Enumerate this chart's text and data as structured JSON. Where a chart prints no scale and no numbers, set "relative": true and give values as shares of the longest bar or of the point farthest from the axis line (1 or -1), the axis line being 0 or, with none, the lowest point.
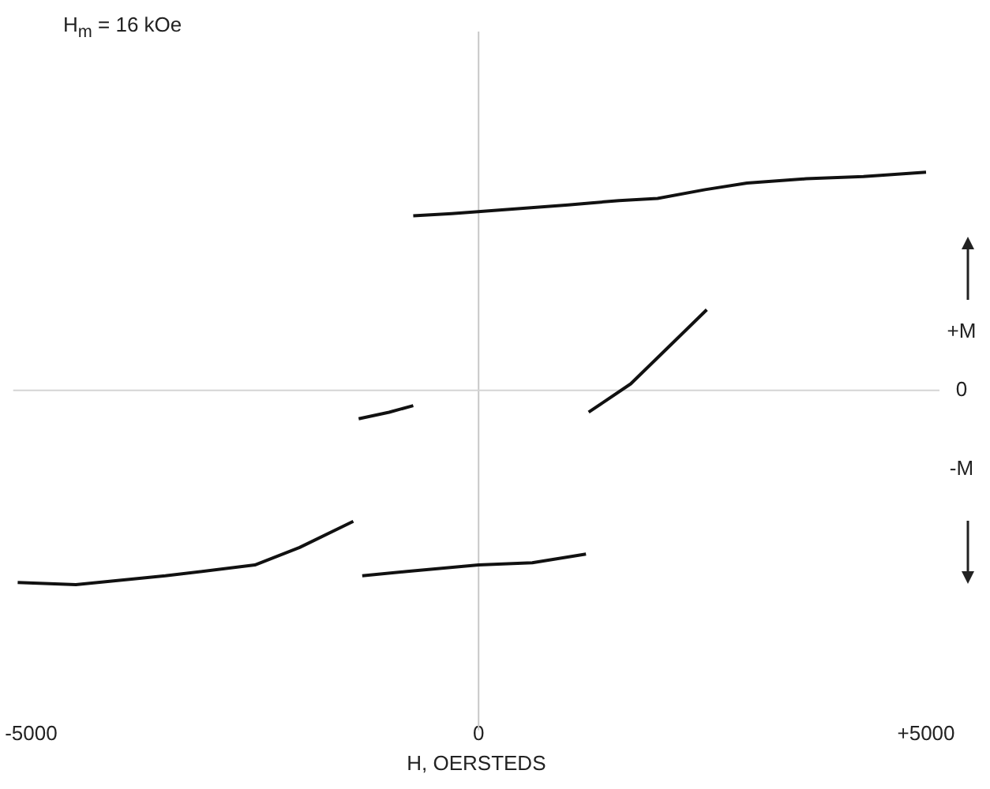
{
  "chart_data": {
    "type": "line",
    "title": "H$_{m}$ = 16 kOe",
    "xlabel": "H, OERSTEDS",
    "relative": true,
    "xlim": [
      -5200,
      5150
    ],
    "xticks": [
      {
        "value": -5000,
        "label": "-5000"
      },
      0,
      {
        "value": 5000,
        "label": "+5000"
      }
    ],
    "grid": false,
    "ref_lines": [
      {
        "axis": "x",
        "value": 0,
        "color": "#c8c8c8"
      },
      {
        "axis": "y",
        "value": 0,
        "color": "#d4d4d4"
      }
    ],
    "annotations": [
      "+M",
      "0",
      "-M"
    ],
    "series": [
      {
        "color": "#111111",
        "x": [
          -730,
          -300,
          350,
          1000,
          1570,
          2000,
          2530,
          3000,
          3660,
          4300,
          5000
        ],
        "values": [
          0.8,
          0.81,
          0.83,
          0.85,
          0.87,
          0.88,
          0.92,
          0.95,
          0.97,
          0.98,
          1.0
        ]
      },
      {
        "color": "#111111",
        "x": [
          -1340,
          -1000,
          -730
        ],
        "values": [
          -0.13,
          -0.1,
          -0.07
        ]
      },
      {
        "color": "#111111",
        "x": [
          -5150,
          -4500,
          -3500,
          -2500,
          -2000,
          -1400
        ],
        "values": [
          -0.88,
          -0.89,
          -0.85,
          -0.8,
          -0.72,
          -0.6
        ]
      },
      {
        "color": "#111111",
        "x": [
          -1300,
          -800,
          0,
          600,
          1200
        ],
        "values": [
          -0.85,
          -0.83,
          -0.8,
          -0.79,
          -0.75
        ]
      },
      {
        "color": "#111111",
        "x": [
          1230,
          1700,
          2200,
          2550
        ],
        "values": [
          -0.1,
          0.03,
          0.23,
          0.37
        ]
      }
    ]
  }
}
